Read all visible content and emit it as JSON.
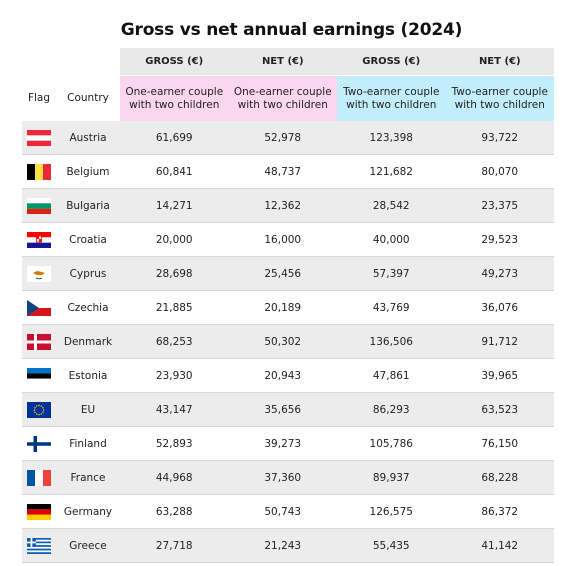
{
  "title": "Gross vs net annual earnings (2024)",
  "header": {
    "flag_label": "Flag",
    "country_label": "Country",
    "gross_1": "GROSS (€)",
    "net_1": "NET (€)",
    "gross_2": "GROSS (€)",
    "net_2": "NET (€)",
    "sub_1": "One-earner couple with two children",
    "sub_2": "One-earner couple with two children",
    "sub_3": "Two-earner couple with two children",
    "sub_4": "Two-earner couple with two children",
    "colors": {
      "pink": "#fbd6ef",
      "cyan": "#c2eefb",
      "header_grey": "#e9e9e9",
      "row_alt": "#ececec"
    }
  },
  "rows": [
    {
      "country": "Austria",
      "flag": "austria-flag-icon",
      "v1": "61,699",
      "v2": "52,978",
      "v3": "123,398",
      "v4": "93,722"
    },
    {
      "country": "Belgium",
      "flag": "belgium-flag-icon",
      "v1": "60,841",
      "v2": "48,737",
      "v3": "121,682",
      "v4": "80,070"
    },
    {
      "country": "Bulgaria",
      "flag": "bulgaria-flag-icon",
      "v1": "14,271",
      "v2": "12,362",
      "v3": "28,542",
      "v4": "23,375"
    },
    {
      "country": "Croatia",
      "flag": "croatia-flag-icon",
      "v1": "20,000",
      "v2": "16,000",
      "v3": "40,000",
      "v4": "29,523"
    },
    {
      "country": "Cyprus",
      "flag": "cyprus-flag-icon",
      "v1": "28,698",
      "v2": "25,456",
      "v3": "57,397",
      "v4": "49,273"
    },
    {
      "country": "Czechia",
      "flag": "czechia-flag-icon",
      "v1": "21,885",
      "v2": "20,189",
      "v3": "43,769",
      "v4": "36,076"
    },
    {
      "country": "Denmark",
      "flag": "denmark-flag-icon",
      "v1": "68,253",
      "v2": "50,302",
      "v3": "136,506",
      "v4": "91,712"
    },
    {
      "country": "Estonia",
      "flag": "estonia-flag-icon",
      "v1": "23,930",
      "v2": "20,943",
      "v3": "47,861",
      "v4": "39,965"
    },
    {
      "country": "EU",
      "flag": "eu-flag-icon",
      "v1": "43,147",
      "v2": "35,656",
      "v3": "86,293",
      "v4": "63,523"
    },
    {
      "country": "Finland",
      "flag": "finland-flag-icon",
      "v1": "52,893",
      "v2": "39,273",
      "v3": "105,786",
      "v4": "76,150"
    },
    {
      "country": "France",
      "flag": "france-flag-icon",
      "v1": "44,968",
      "v2": "37,360",
      "v3": "89,937",
      "v4": "68,228"
    },
    {
      "country": "Germany",
      "flag": "germany-flag-icon",
      "v1": "63,288",
      "v2": "50,743",
      "v3": "126,575",
      "v4": "86,372"
    },
    {
      "country": "Greece",
      "flag": "greece-flag-icon",
      "v1": "27,718",
      "v2": "21,243",
      "v3": "55,435",
      "v4": "41,142"
    }
  ]
}
